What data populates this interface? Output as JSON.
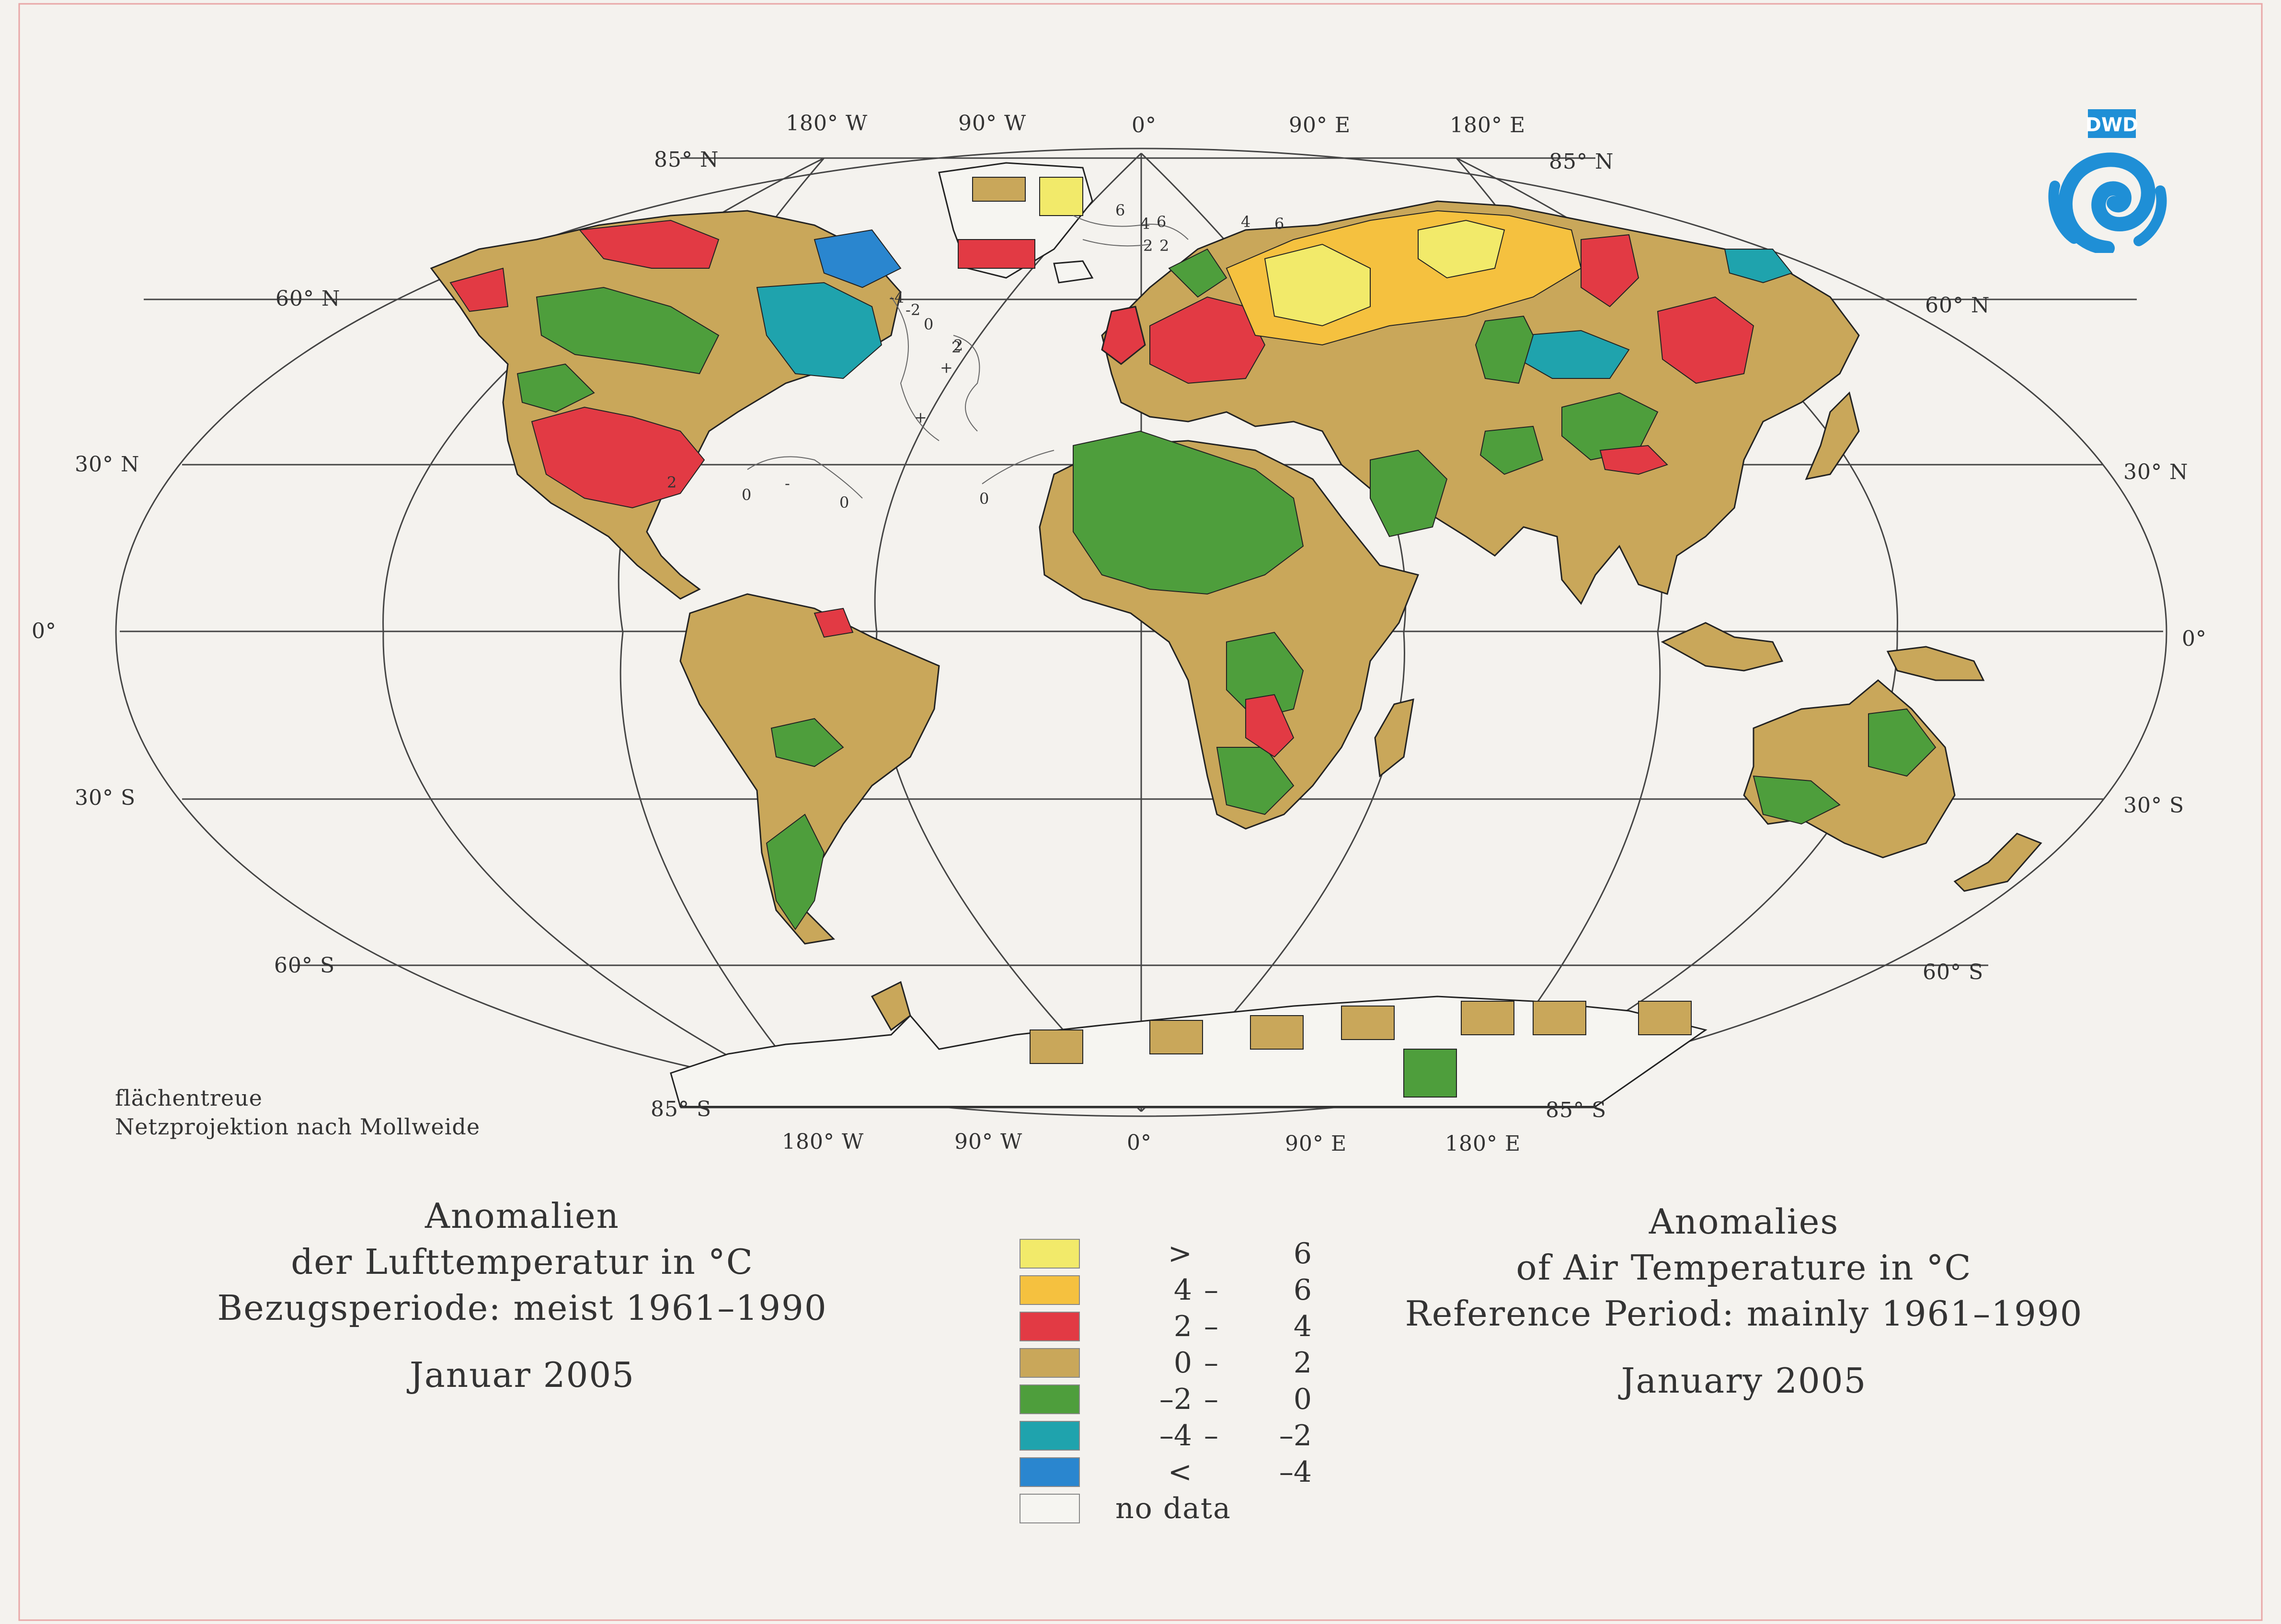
{
  "map": {
    "projection_note": [
      "flächentreue",
      "Netzprojektion nach Mollweide"
    ],
    "lat_labels": {
      "n85": "85° N",
      "n60": "60° N",
      "n30": "30° N",
      "eq": "0°",
      "s30": "30° S",
      "s60": "60° S",
      "s85": "85° S"
    },
    "lon_labels": [
      "180° W",
      "90° W",
      "0°",
      "90° E",
      "180° E"
    ],
    "contour_labels": [
      "6",
      "4",
      "6",
      "2",
      "2",
      "4",
      "6",
      "-4",
      "-2",
      "0",
      "2",
      "2",
      "0",
      "0",
      "0",
      "2",
      "+",
      "+",
      "-"
    ]
  },
  "title_de": {
    "line1": "Anomalien",
    "line2": "der Lufttemperatur in °C",
    "line3": "Bezugsperiode: meist 1961–1990",
    "month": "Januar 2005"
  },
  "title_en": {
    "line1": "Anomalies",
    "line2": "of Air Temperature in °C",
    "line3": "Reference Period: mainly 1961–1990",
    "month": "January 2005"
  },
  "legend": [
    {
      "lo": ">",
      "dash": "",
      "hi": "6",
      "color": "#f2ea6a"
    },
    {
      "lo": "4",
      "dash": "–",
      "hi": "6",
      "color": "#f5c13f"
    },
    {
      "lo": "2",
      "dash": "–",
      "hi": "4",
      "color": "#e23a44"
    },
    {
      "lo": "0",
      "dash": "–",
      "hi": "2",
      "color": "#c9a75a"
    },
    {
      "lo": "–2",
      "dash": "–",
      "hi": "0",
      "color": "#4e9e3c"
    },
    {
      "lo": "–4",
      "dash": "–",
      "hi": "–2",
      "color": "#1fa3ad"
    },
    {
      "lo": "<",
      "dash": "",
      "hi": "–4",
      "color": "#2a86cf"
    },
    {
      "label": "no data",
      "color": "#f6f5f1"
    }
  ],
  "logo": {
    "text": "DWD",
    "color": "#1f8fd6"
  }
}
